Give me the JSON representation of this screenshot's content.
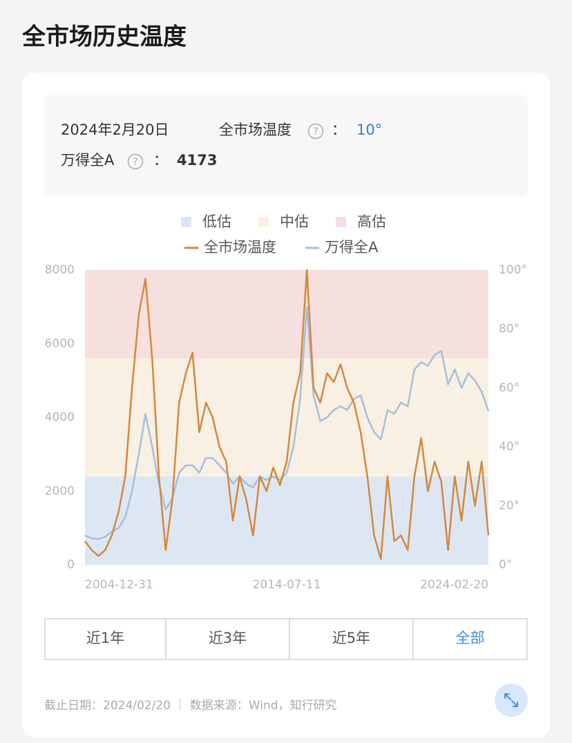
{
  "header": {
    "title": "全市场历史温度"
  },
  "info": {
    "date": "2024年2月20日",
    "temp_label": "全市场温度",
    "help_icon": "?",
    "colon": "：",
    "temp_value": "10°",
    "index_label": "万得全A",
    "index_value": "4173"
  },
  "chart_data": {
    "type": "line",
    "categories": [
      "2004-12-31",
      null,
      null,
      null,
      null,
      null,
      null,
      null,
      null,
      null,
      null,
      null,
      null,
      null,
      null,
      null,
      null,
      null,
      null,
      null,
      null,
      null,
      null,
      null,
      null,
      null,
      null,
      null,
      null,
      null,
      "2014-07-11",
      null,
      null,
      null,
      null,
      null,
      null,
      null,
      null,
      null,
      null,
      null,
      null,
      null,
      null,
      null,
      null,
      null,
      null,
      null,
      null,
      null,
      null,
      null,
      null,
      null,
      null,
      null,
      null,
      null,
      "2024-02-20"
    ],
    "bands": [
      {
        "name": "低估",
        "color": "#dde7f3",
        "range": [
          0,
          30
        ]
      },
      {
        "name": "中估",
        "color": "#f8f0e3",
        "range": [
          30,
          70
        ]
      },
      {
        "name": "高估",
        "color": "#f5dfdf",
        "range": [
          70,
          100
        ]
      }
    ],
    "series": [
      {
        "name": "全市场温度",
        "color": "#d4883a",
        "axis": "y2",
        "values": [
          8,
          5,
          3,
          5,
          10,
          18,
          30,
          60,
          85,
          97,
          70,
          30,
          5,
          22,
          55,
          65,
          72,
          45,
          55,
          50,
          40,
          35,
          15,
          30,
          22,
          10,
          30,
          25,
          33,
          27,
          35,
          55,
          65,
          100,
          60,
          55,
          65,
          62,
          68,
          60,
          55,
          45,
          30,
          10,
          2,
          30,
          8,
          10,
          5,
          30,
          43,
          25,
          35,
          28,
          5,
          30,
          15,
          35,
          20,
          35,
          10
        ]
      },
      {
        "name": "万得全A",
        "color": "#a5bfdc",
        "values": [
          800,
          720,
          700,
          760,
          900,
          1000,
          1300,
          2000,
          3000,
          4100,
          3200,
          2200,
          1500,
          1800,
          2500,
          2700,
          2700,
          2500,
          2900,
          2900,
          2700,
          2500,
          2200,
          2400,
          2200,
          2100,
          2400,
          2300,
          2400,
          2300,
          2500,
          3200,
          4500,
          7000,
          4600,
          3900,
          4000,
          4200,
          4300,
          4200,
          4500,
          4600,
          4000,
          3600,
          3400,
          4200,
          4100,
          4400,
          4300,
          5300,
          5500,
          5400,
          5700,
          5800,
          4900,
          5300,
          4800,
          5200,
          5000,
          4700,
          4173
        ]
      }
    ],
    "ylim": [
      0,
      8000
    ],
    "yticks": [
      0,
      2000,
      4000,
      6000,
      8000
    ],
    "y2lim": [
      0,
      100
    ],
    "y2ticks": [
      {
        "value": 0,
        "label": "0°"
      },
      {
        "value": 20,
        "label": "20°"
      },
      {
        "value": 40,
        "label": "40°"
      },
      {
        "value": 60,
        "label": "60°"
      },
      {
        "value": 80,
        "label": "80°"
      },
      {
        "value": 100,
        "label": "100°"
      }
    ]
  },
  "range_buttons": {
    "labels": [
      "近1年",
      "近3年",
      "近5年",
      "全部"
    ],
    "active": 3
  },
  "footer": {
    "text": "截止日期：2024/02/20 ｜ 数据来源：Wind，知行研究"
  }
}
